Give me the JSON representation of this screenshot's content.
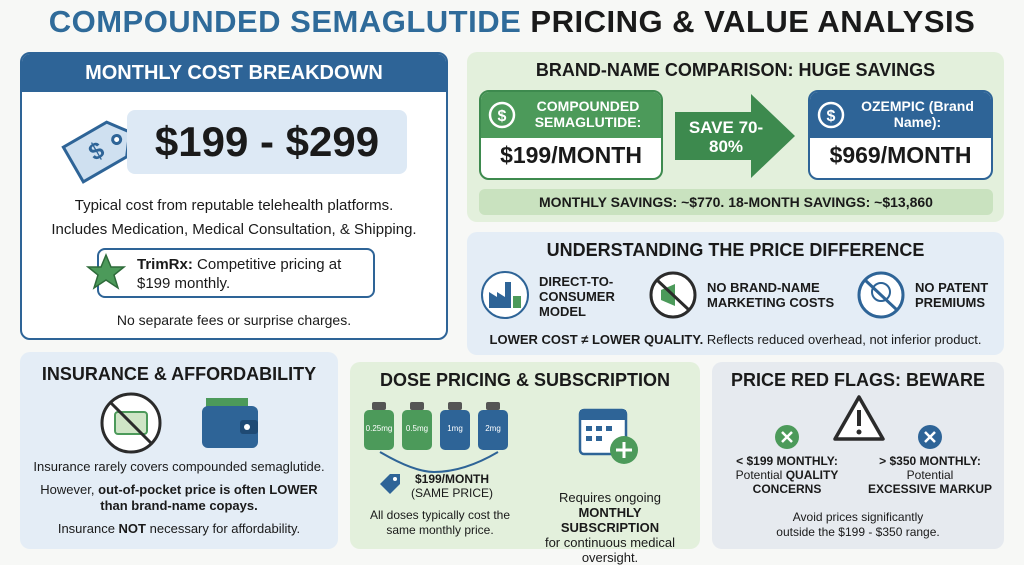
{
  "title": {
    "part1": "COMPOUNDED SEMAGLUTIDE",
    "part2": "PRICING & VALUE ANALYSIS"
  },
  "monthly_cost": {
    "heading": "MONTHLY COST BREAKDOWN",
    "price": "$199 - $299",
    "description": [
      "Typical cost from reputable telehealth platforms.",
      "Includes Medication, Medical Consultation, & Shipping."
    ],
    "callout": {
      "brand": "TrimRx:",
      "text": "Competitive pricing at $199 monthly."
    },
    "note": "No separate fees or surprise charges."
  },
  "comparison": {
    "heading": "BRAND-NAME COMPARISON: HUGE SAVINGS",
    "compounded": {
      "label": "COMPOUNDED SEMAGLUTIDE:",
      "price": "$199/MONTH"
    },
    "arrow": "SAVE 70-80%",
    "brand": {
      "label": "OZEMPIC (Brand Name):",
      "price": "$969/MONTH"
    },
    "savings": "MONTHLY SAVINGS: ~$770. 18-MONTH SAVINGS: ~$13,860"
  },
  "price_difference": {
    "heading": "UNDERSTANDING THE PRICE DIFFERENCE",
    "factors": [
      "DIRECT-TO-CONSUMER MODEL",
      "NO BRAND-NAME MARKETING COSTS",
      "NO PATENT PREMIUMS"
    ],
    "note": {
      "bold": "LOWER COST ≠ LOWER QUALITY.",
      "text": "Reflects reduced overhead, not inferior product."
    }
  },
  "insurance": {
    "heading": "INSURANCE & AFFORDABILITY",
    "line1": "Insurance rarely covers compounded semaglutide.",
    "line2": {
      "before": "However,",
      "bold": "out-of-pocket price is often LOWER than brand-name copays."
    },
    "line3": {
      "before": "Insurance",
      "bold": "NOT",
      "after": "necessary for affordability."
    }
  },
  "dose": {
    "heading": "DOSE PRICING & SUBSCRIPTION",
    "vials": [
      "0.25mg",
      "0.5mg",
      "1mg",
      "2mg"
    ],
    "price": "$199/MONTH",
    "price_note": "(SAME PRICE)",
    "doses_text": "All doses typically cost the same monthly price.",
    "subscription": {
      "before": "Requires ongoing",
      "bold": "MONTHLY SUBSCRIPTION",
      "after": "for continuous medical oversight."
    }
  },
  "red_flags": {
    "heading": "PRICE RED FLAGS: BEWARE",
    "low": {
      "label": "< $199 MONTHLY:",
      "before": "Potential",
      "bold": "QUALITY CONCERNS"
    },
    "high": {
      "label": "> $350 MONTHLY:",
      "before": "Potential",
      "bold": "EXCESSIVE MARKUP"
    },
    "note": "Avoid prices significantly outside the $199 - $350 range."
  }
}
